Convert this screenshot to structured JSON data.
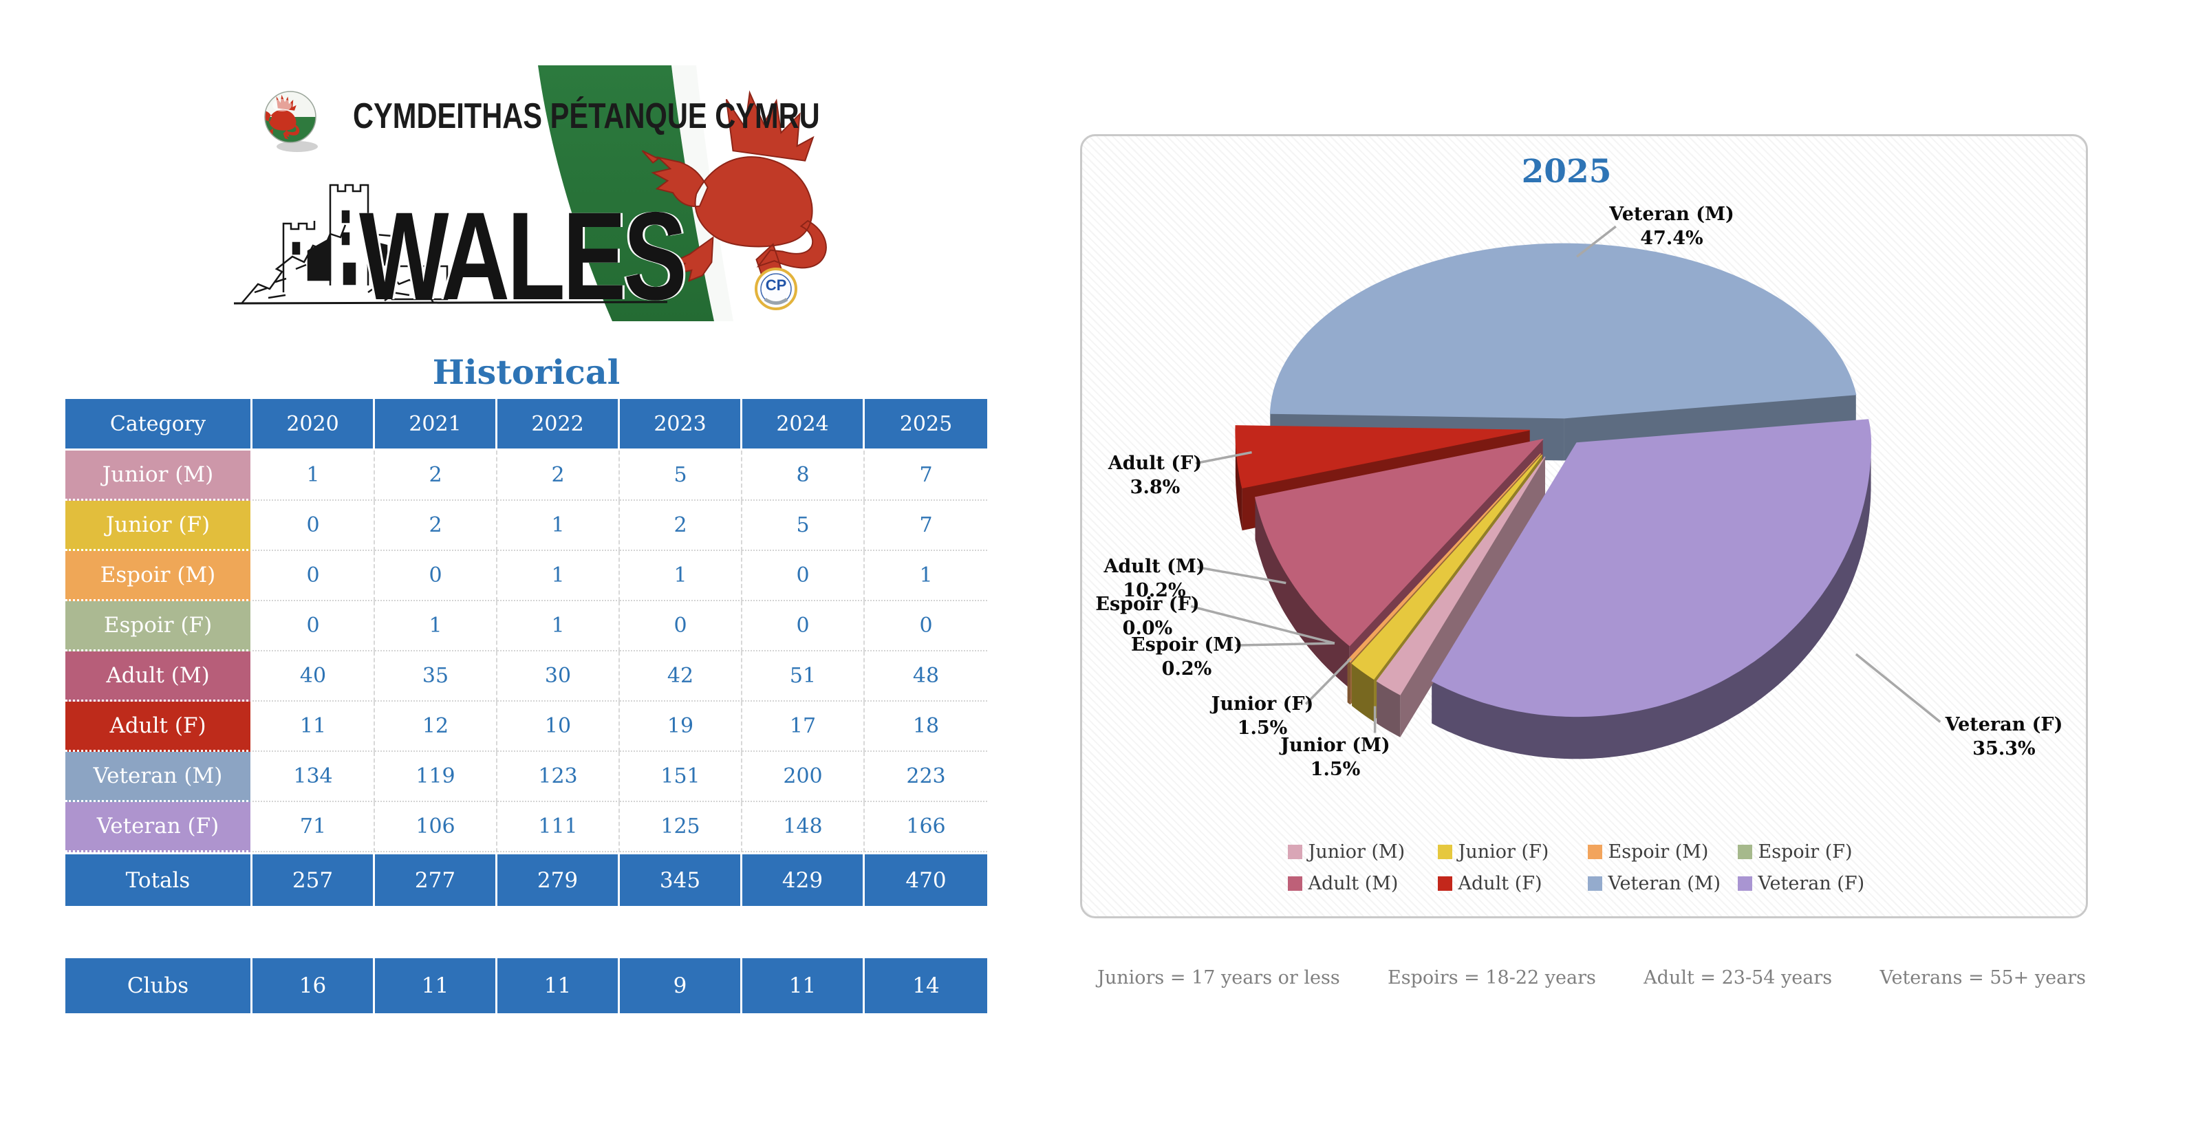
{
  "banner": {
    "org_name": "CYMDEITHAS PÉTANQUE CYMRU",
    "country": "WALES"
  },
  "historical": {
    "title": "Historical",
    "columns": [
      "Category",
      "2020",
      "2021",
      "2022",
      "2023",
      "2024",
      "2025"
    ],
    "rows": [
      {
        "label": "Junior (M)",
        "color": "#CD97A9",
        "values": [
          1,
          2,
          2,
          5,
          8,
          7
        ]
      },
      {
        "label": "Junior (F)",
        "color": "#E2BE3C",
        "values": [
          0,
          2,
          1,
          2,
          5,
          7
        ]
      },
      {
        "label": "Espoir (M)",
        "color": "#EFA757",
        "values": [
          0,
          0,
          1,
          1,
          0,
          1
        ]
      },
      {
        "label": "Espoir (F)",
        "color": "#ABB992",
        "values": [
          0,
          1,
          1,
          0,
          0,
          0
        ]
      },
      {
        "label": "Adult (M)",
        "color": "#B75E79",
        "values": [
          40,
          35,
          30,
          42,
          51,
          48
        ]
      },
      {
        "label": "Adult (F)",
        "color": "#BE2B1B",
        "values": [
          11,
          12,
          10,
          19,
          17,
          18
        ]
      },
      {
        "label": "Veteran (M)",
        "color": "#8CA4C3",
        "values": [
          134,
          119,
          123,
          151,
          200,
          223
        ]
      },
      {
        "label": "Veteran (F)",
        "color": "#AE94CE",
        "values": [
          71,
          106,
          111,
          125,
          148,
          166
        ]
      }
    ],
    "totals": {
      "label": "Totals",
      "values": [
        257,
        277,
        279,
        345,
        429,
        470
      ]
    },
    "clubs": {
      "label": "Clubs",
      "values": [
        16,
        11,
        11,
        9,
        11,
        14
      ]
    }
  },
  "chart_data": {
    "type": "pie",
    "style": "3d-exploded",
    "title": "2025",
    "legend_position": "bottom",
    "slices": [
      {
        "label": "Junior (M)",
        "pct": 1.5,
        "color": "#D9A6B6"
      },
      {
        "label": "Junior (F)",
        "pct": 1.5,
        "color": "#E6C83E"
      },
      {
        "label": "Espoir (M)",
        "pct": 0.2,
        "color": "#F2A45C"
      },
      {
        "label": "Espoir (F)",
        "pct": 0.0,
        "color": "#A6B98C"
      },
      {
        "label": "Adult (M)",
        "pct": 10.2,
        "color": "#BE6078"
      },
      {
        "label": "Adult (F)",
        "pct": 3.8,
        "color": "#C3271B"
      },
      {
        "label": "Veteran (M)",
        "pct": 47.4,
        "color": "#94ABCD"
      },
      {
        "label": "Veteran (F)",
        "pct": 35.3,
        "color": "#A995D2"
      }
    ]
  },
  "footnotes": [
    "Juniors = 17 years or less",
    "Espoirs = 18-22 years",
    "Adult = 23-54 years",
    "Veterans = 55+ years"
  ]
}
